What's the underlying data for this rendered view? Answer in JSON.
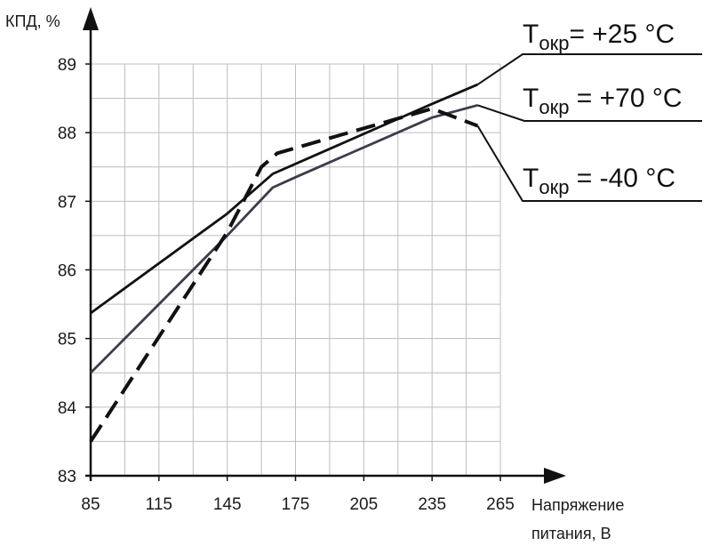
{
  "chart_data": {
    "type": "line",
    "ylabel": "КПД, %",
    "xlabel_line1": "Напряжение",
    "xlabel_line2": "питания, В",
    "xlim": [
      85,
      265
    ],
    "ylim": [
      83,
      89
    ],
    "xticks": [
      85,
      115,
      145,
      175,
      205,
      235,
      265
    ],
    "yticks": [
      83,
      84,
      85,
      86,
      87,
      88,
      89
    ],
    "x_minor_step": 15,
    "y_minor_step": 0.5,
    "grid": true,
    "colors": {
      "plus25": "#111111",
      "plus70": "#3c3c4c",
      "minus40": "#111111",
      "grid": "#bdbdbd",
      "axis": "#111111"
    },
    "series": [
      {
        "key": "plus25",
        "label_main": "Т",
        "label_sub": "окр",
        "label_rest": "= +25 °C",
        "style": "solid",
        "x": [
          85,
          145,
          165,
          235,
          255
        ],
        "y": [
          85.37,
          86.82,
          87.4,
          88.42,
          88.7
        ]
      },
      {
        "key": "plus70",
        "label_main": "Т",
        "label_sub": "окр",
        "label_rest": " = +70 °C",
        "style": "solid",
        "x": [
          85,
          145,
          165,
          175,
          235,
          255
        ],
        "y": [
          84.5,
          86.5,
          87.2,
          87.35,
          88.22,
          88.4
        ]
      },
      {
        "key": "minus40",
        "label_main": "Т",
        "label_sub": "окр",
        "label_rest": " = -40 °C",
        "style": "dashed",
        "x": [
          85,
          145,
          160,
          167,
          235,
          255
        ],
        "y": [
          83.5,
          86.55,
          87.5,
          87.7,
          88.35,
          88.1
        ]
      }
    ]
  }
}
